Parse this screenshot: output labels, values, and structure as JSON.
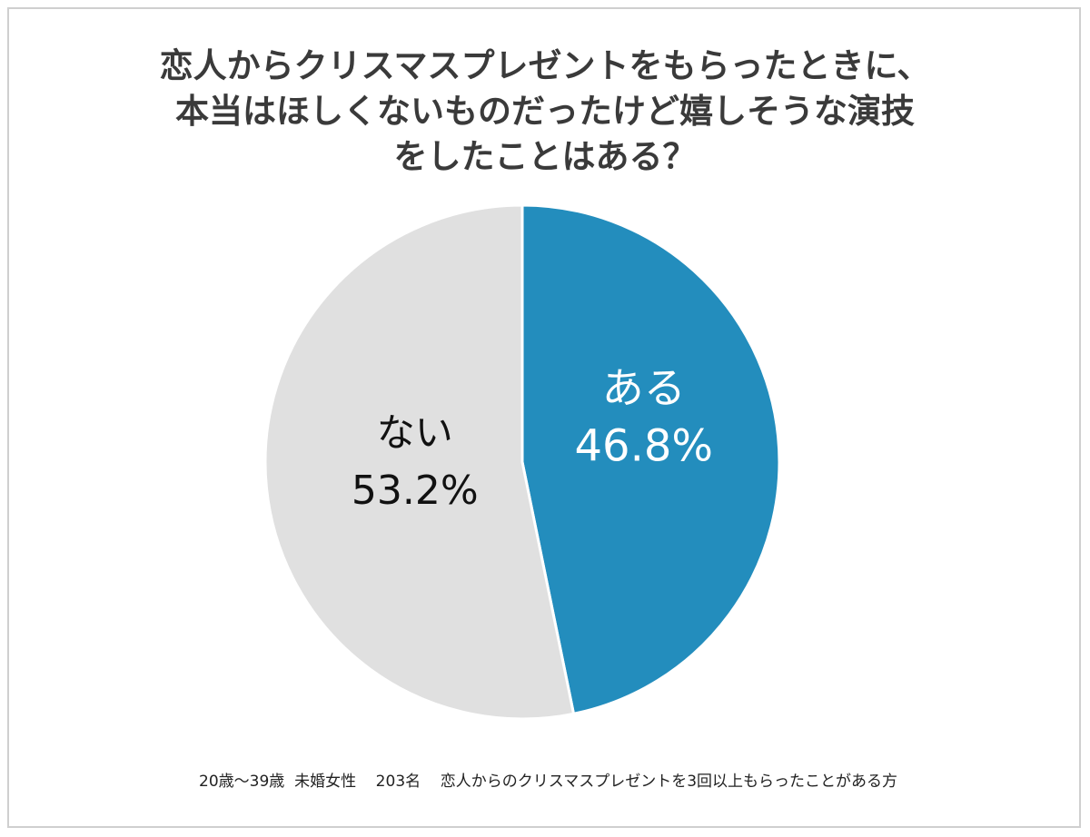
{
  "chart_data": {
    "type": "pie",
    "title_lines": [
      "恋人からクリスマスプレゼントをもらったときに、",
      "本当はほしくないものだったけど嬉しそうな演技",
      "をしたことはある？"
    ],
    "slices": [
      {
        "label": "ある",
        "value": 46.8,
        "value_label": "46.8%",
        "color": "#238dbd",
        "text_color": "#ffffff"
      },
      {
        "label": "ない",
        "value": 53.2,
        "value_label": "53.2%",
        "color": "#e0e0e0",
        "text_color": "#111111"
      }
    ],
    "start_angle": "12 o'clock",
    "direction": "clockwise",
    "note": "20歳〜39歳  未婚女性    203名    恋人からのクリスマスプレゼントを3回以上もらったことがある方"
  }
}
